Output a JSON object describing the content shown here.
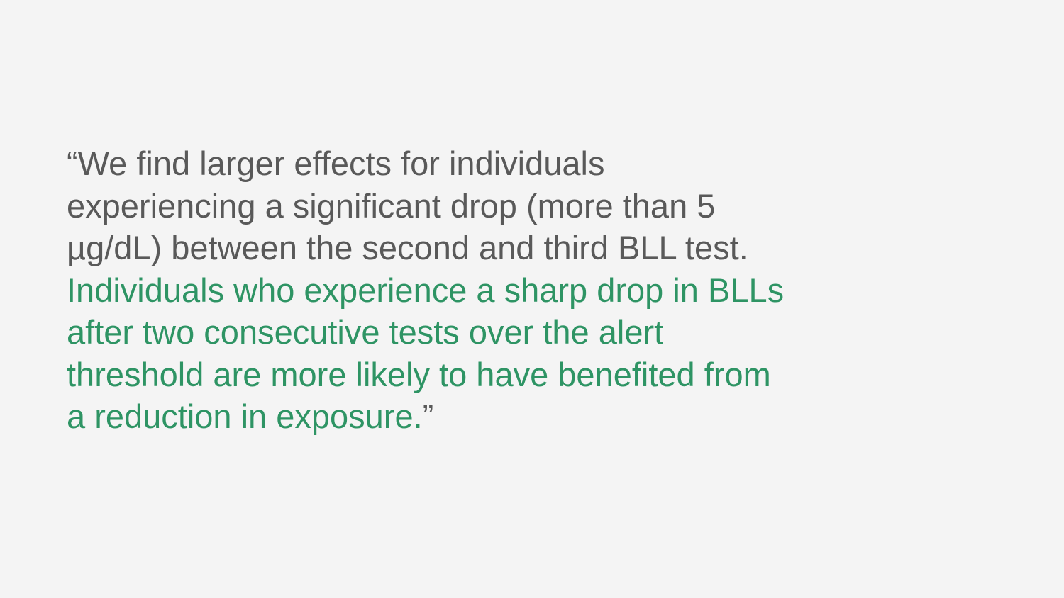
{
  "quote": {
    "open_mark": "“",
    "lead_text": "We find larger effects for individuals experiencing a significant drop (more than 5 µg/dL) between the second and third BLL test.",
    "highlight_text": "Individuals who experience a sharp drop in BLLs after two consecutive tests over the alert threshold are more likely to have benefited from a reduction in exposure.",
    "close_mark": "”"
  },
  "colors": {
    "background": "#f4f4f4",
    "text": "#595959",
    "highlight": "#2e9464"
  }
}
